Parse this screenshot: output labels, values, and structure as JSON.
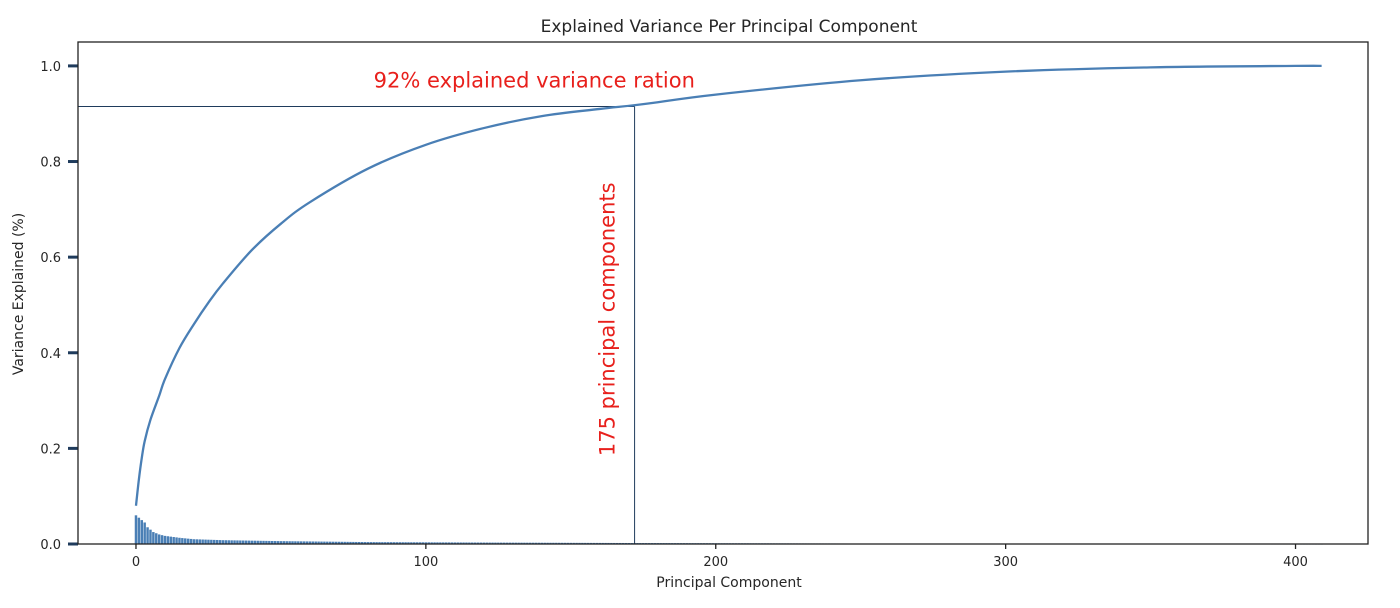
{
  "chart_data": {
    "type": "bar+line",
    "title": "Explained Variance Per Principal Component",
    "xlabel": "Principal Component",
    "ylabel": "Variance Explained (%)",
    "xlim": [
      -20,
      425
    ],
    "ylim": [
      0,
      1.05
    ],
    "x_ticks": [
      0,
      100,
      200,
      300,
      400
    ],
    "y_ticks": [
      0.0,
      0.2,
      0.4,
      0.6,
      0.8,
      1.0
    ],
    "x_tick_labels": [
      "0",
      "100",
      "200",
      "300",
      "400"
    ],
    "y_tick_labels": [
      "0.0",
      "0.2",
      "0.4",
      "0.6",
      "0.8",
      "1.0"
    ],
    "grid": false,
    "n_components": 410,
    "series": [
      {
        "kind": "line",
        "color": "#4a7fb5",
        "x": [
          0,
          1,
          2,
          3,
          5,
          8,
          10,
          15,
          20,
          25,
          30,
          40,
          50,
          60,
          80,
          100,
          120,
          140,
          160,
          175,
          200,
          250,
          300,
          350,
          400,
          409
        ],
        "values": [
          0.08,
          0.135,
          0.18,
          0.215,
          0.26,
          0.31,
          0.345,
          0.41,
          0.46,
          0.505,
          0.545,
          0.615,
          0.67,
          0.715,
          0.785,
          0.835,
          0.87,
          0.895,
          0.91,
          0.92,
          0.94,
          0.97,
          0.988,
          0.997,
          1.0,
          1.0
        ]
      },
      {
        "kind": "bar",
        "color": "#4a7fb5",
        "x": [
          0,
          1,
          2,
          3,
          4,
          5,
          6,
          8,
          10,
          15,
          20,
          30,
          50,
          80,
          120,
          175,
          250,
          409
        ],
        "values": [
          0.06,
          0.055,
          0.05,
          0.045,
          0.035,
          0.03,
          0.025,
          0.02,
          0.017,
          0.013,
          0.01,
          0.008,
          0.006,
          0.004,
          0.003,
          0.002,
          0.001,
          0.0001
        ]
      }
    ],
    "reference_lines": {
      "y": 0.915,
      "x": 172,
      "color": "#1f3b5c"
    },
    "annotations": [
      {
        "text": "92% explained variance ration",
        "x": 82,
        "y": 0.955,
        "rotation": 0,
        "color": "#e8201c"
      },
      {
        "text": "175 principal components",
        "x": 165,
        "y": 0.47,
        "rotation": -90,
        "color": "#e8201c"
      }
    ]
  }
}
